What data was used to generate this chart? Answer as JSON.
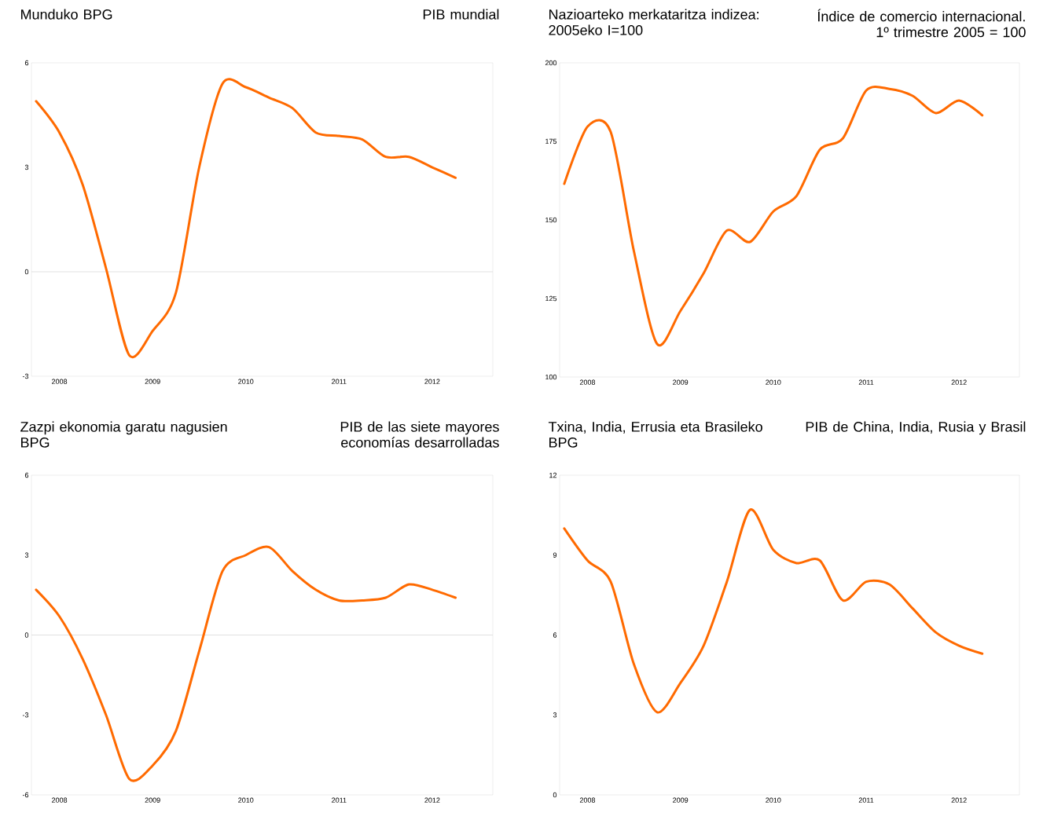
{
  "chart_data": [
    {
      "type": "line",
      "title": "Munduko BPG",
      "subtitle": "PIB mundial",
      "x": [
        2007.75,
        2008,
        2008.25,
        2008.5,
        2008.75,
        2009,
        2009.25,
        2009.5,
        2009.75,
        2010,
        2010.25,
        2010.5,
        2010.75,
        2011,
        2011.25,
        2011.5,
        2011.75,
        2012,
        2012.25
      ],
      "series": [
        {
          "color": "#ff6a00",
          "values": [
            4.9,
            4.0,
            2.5,
            0.1,
            -2.4,
            -1.7,
            -0.6,
            3.0,
            5.4,
            5.3,
            5.0,
            4.7,
            4.0,
            3.9,
            3.8,
            3.3,
            3.3,
            3.0,
            2.7
          ]
        }
      ],
      "xlim": [
        2007.7,
        2012.65
      ],
      "xticks": [
        2008,
        2009,
        2010,
        2011,
        2012
      ],
      "ylim": [
        -3,
        6
      ],
      "yticks": [
        -3,
        0,
        3,
        6
      ],
      "ref_lines": [
        {
          "axis": "y",
          "value": 0,
          "color": "#d9d9d9"
        }
      ]
    },
    {
      "type": "line",
      "title": "Nazioarteko merkataritza indizea: 2005eko I=100",
      "subtitle": "Índice de comercio internacional. 1º trimestre 2005 = 100",
      "x": [
        2007.75,
        2008,
        2008.25,
        2008.5,
        2008.75,
        2009,
        2009.25,
        2009.5,
        2009.75,
        2010,
        2010.25,
        2010.5,
        2010.75,
        2011,
        2011.25,
        2011.5,
        2011.75,
        2012,
        2012.25
      ],
      "series": [
        {
          "color": "#ff6a00",
          "values": [
            161.5,
            179.7,
            178,
            140,
            110.5,
            121,
            133,
            146.6,
            143,
            152.7,
            157.6,
            172.3,
            176,
            191.2,
            191.7,
            189.5,
            184,
            188,
            183.3
          ]
        }
      ],
      "xlim": [
        2007.7,
        2012.65
      ],
      "xticks": [
        2008,
        2009,
        2010,
        2011,
        2012
      ],
      "ylim": [
        100,
        200
      ],
      "yticks": [
        100,
        125,
        150,
        175,
        200
      ]
    },
    {
      "type": "line",
      "title": "Zazpi ekonomia garatu nagusien BPG",
      "subtitle": "PIB de las siete mayores economías desarrolladas",
      "x": [
        2007.75,
        2008,
        2008.25,
        2008.5,
        2008.75,
        2009,
        2009.25,
        2009.5,
        2009.75,
        2010,
        2010.25,
        2010.5,
        2010.75,
        2011,
        2011.25,
        2011.5,
        2011.75,
        2012,
        2012.25
      ],
      "series": [
        {
          "color": "#ff6a00",
          "values": [
            1.7,
            0.7,
            -0.9,
            -3.0,
            -5.4,
            -4.9,
            -3.6,
            -0.6,
            2.4,
            3.0,
            3.3,
            2.4,
            1.7,
            1.3,
            1.3,
            1.4,
            1.9,
            1.7,
            1.4
          ]
        }
      ],
      "xlim": [
        2007.7,
        2012.65
      ],
      "xticks": [
        2008,
        2009,
        2010,
        2011,
        2012
      ],
      "ylim": [
        -6,
        6
      ],
      "yticks": [
        -6,
        -3,
        0,
        3,
        6
      ],
      "ref_lines": [
        {
          "axis": "y",
          "value": 0,
          "color": "#d9d9d9"
        }
      ]
    },
    {
      "type": "line",
      "title": "Txina, India, Errusia eta Brasileko BPG",
      "subtitle": "PIB de China, India, Rusia y Brasil",
      "x": [
        2007.75,
        2008,
        2008.25,
        2008.5,
        2008.75,
        2009,
        2009.25,
        2009.5,
        2009.75,
        2010,
        2010.25,
        2010.5,
        2010.75,
        2011,
        2011.25,
        2011.5,
        2011.75,
        2012,
        2012.25
      ],
      "series": [
        {
          "color": "#ff6a00",
          "values": [
            10.0,
            8.8,
            8.0,
            4.9,
            3.1,
            4.2,
            5.6,
            8.0,
            10.7,
            9.2,
            8.7,
            8.8,
            7.3,
            8.0,
            7.9,
            7.0,
            6.1,
            5.6,
            5.3
          ]
        }
      ],
      "xlim": [
        2007.7,
        2012.65
      ],
      "xticks": [
        2008,
        2009,
        2010,
        2011,
        2012
      ],
      "ylim": [
        0,
        12
      ],
      "yticks": [
        0,
        3,
        6,
        9,
        12
      ]
    }
  ]
}
